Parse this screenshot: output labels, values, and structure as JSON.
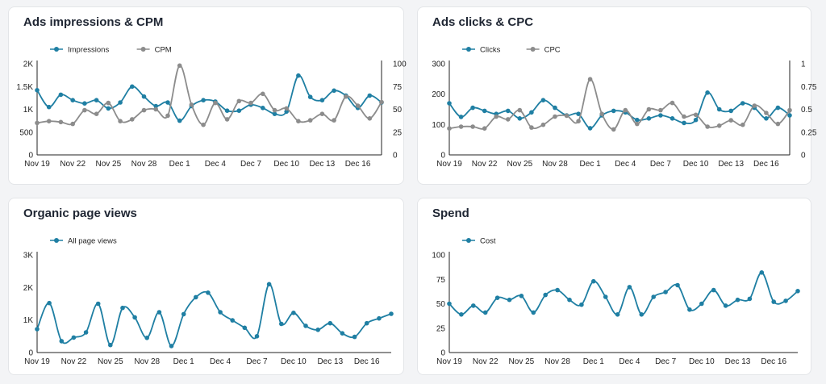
{
  "colors": {
    "primary": "#1f7fa3",
    "secondary": "#8c8c8c",
    "axis": "#222222",
    "background": "#f3f4f6",
    "card": "#ffffff"
  },
  "cards": [
    {
      "title": "Ads impressions & CPM"
    },
    {
      "title": "Ads clicks & CPC"
    },
    {
      "title": "Organic page views"
    },
    {
      "title": "Spend"
    }
  ],
  "chart_data": [
    {
      "type": "line",
      "title": "Ads impressions & CPM",
      "xlabel": "",
      "ylabel": "",
      "x_ticks": [
        "Nov 19",
        "Nov 22",
        "Nov 25",
        "Nov 28",
        "Dec 1",
        "Dec 4",
        "Dec 7",
        "Dec 10",
        "Dec 13",
        "Dec 16"
      ],
      "y_ticks": [
        "0",
        "500",
        "1K",
        "1.5K",
        "2K"
      ],
      "y2_ticks": [
        "0",
        "25",
        "50",
        "75",
        "100"
      ],
      "ylim": [
        0,
        2000
      ],
      "y2lim": [
        0,
        100
      ],
      "legend": "top-left",
      "series": [
        {
          "name": "Impressions",
          "axis": "left",
          "color": "#1f7fa3",
          "values": [
            1420,
            1050,
            1320,
            1200,
            1130,
            1200,
            1020,
            1150,
            1500,
            1280,
            1070,
            1150,
            750,
            1070,
            1200,
            1170,
            970,
            970,
            1100,
            1030,
            900,
            950,
            1740,
            1270,
            1200,
            1410,
            1300,
            1030,
            1300,
            1150
          ]
        },
        {
          "name": "CPM",
          "axis": "right",
          "color": "#8c8c8c",
          "values": [
            35,
            37,
            36,
            34,
            49,
            45,
            57,
            37,
            39,
            49,
            50,
            43,
            98,
            55,
            33,
            57,
            39,
            59,
            57,
            67,
            49,
            51,
            37,
            38,
            45,
            38,
            64,
            54,
            40,
            58
          ]
        }
      ]
    },
    {
      "type": "line",
      "title": "Ads clicks & CPC",
      "xlabel": "",
      "ylabel": "",
      "x_ticks": [
        "Nov 19",
        "Nov 22",
        "Nov 25",
        "Nov 28",
        "Dec 1",
        "Dec 4",
        "Dec 7",
        "Dec 10",
        "Dec 13",
        "Dec 16"
      ],
      "y_ticks": [
        "0",
        "100",
        "200",
        "300"
      ],
      "y2_ticks": [
        "0",
        "0.25",
        "0.5",
        "0.75",
        "1"
      ],
      "ylim": [
        0,
        300
      ],
      "y2lim": [
        0,
        1
      ],
      "legend": "top-left",
      "series": [
        {
          "name": "Clicks",
          "axis": "left",
          "color": "#1f7fa3",
          "values": [
            170,
            125,
            155,
            145,
            135,
            145,
            120,
            140,
            180,
            155,
            130,
            135,
            88,
            130,
            145,
            140,
            115,
            120,
            130,
            120,
            105,
            115,
            205,
            150,
            145,
            170,
            155,
            120,
            155,
            130
          ]
        },
        {
          "name": "CPC",
          "axis": "right",
          "color": "#8c8c8c",
          "values": [
            0.29,
            0.31,
            0.31,
            0.29,
            0.42,
            0.39,
            0.49,
            0.3,
            0.33,
            0.42,
            0.43,
            0.37,
            0.83,
            0.45,
            0.28,
            0.49,
            0.34,
            0.5,
            0.49,
            0.57,
            0.42,
            0.44,
            0.31,
            0.32,
            0.38,
            0.33,
            0.54,
            0.46,
            0.34,
            0.49
          ]
        }
      ]
    },
    {
      "type": "line",
      "title": "Organic page views",
      "xlabel": "",
      "ylabel": "",
      "x_ticks": [
        "Nov 19",
        "Nov 22",
        "Nov 25",
        "Nov 28",
        "Dec 1",
        "Dec 4",
        "Dec 7",
        "Dec 10",
        "Dec 13",
        "Dec 16"
      ],
      "y_ticks": [
        "0",
        "1K",
        "2K",
        "3K"
      ],
      "ylim": [
        0,
        3000
      ],
      "legend": "top-left",
      "series": [
        {
          "name": "All page views",
          "axis": "left",
          "color": "#1f7fa3",
          "values": [
            720,
            1520,
            350,
            460,
            620,
            1500,
            230,
            1370,
            1080,
            450,
            1240,
            200,
            1180,
            1700,
            1840,
            1240,
            990,
            760,
            500,
            2100,
            880,
            1220,
            820,
            700,
            900,
            590,
            480,
            900,
            1050,
            1190
          ]
        }
      ]
    },
    {
      "type": "line",
      "title": "Spend",
      "xlabel": "",
      "ylabel": "",
      "x_ticks": [
        "Nov 19",
        "Nov 22",
        "Nov 25",
        "Nov 28",
        "Dec 1",
        "Dec 4",
        "Dec 7",
        "Dec 10",
        "Dec 13",
        "Dec 16"
      ],
      "y_ticks": [
        "0",
        "25",
        "50",
        "75",
        "100"
      ],
      "ylim": [
        0,
        100
      ],
      "legend": "top-left",
      "series": [
        {
          "name": "Cost",
          "axis": "left",
          "color": "#1f7fa3",
          "values": [
            50,
            39,
            48,
            41,
            56,
            54,
            58,
            41,
            59,
            64,
            54,
            49,
            73,
            57,
            39,
            67,
            39,
            57,
            62,
            69,
            44,
            50,
            64,
            48,
            54,
            55,
            82,
            52,
            53,
            63
          ]
        }
      ]
    }
  ]
}
